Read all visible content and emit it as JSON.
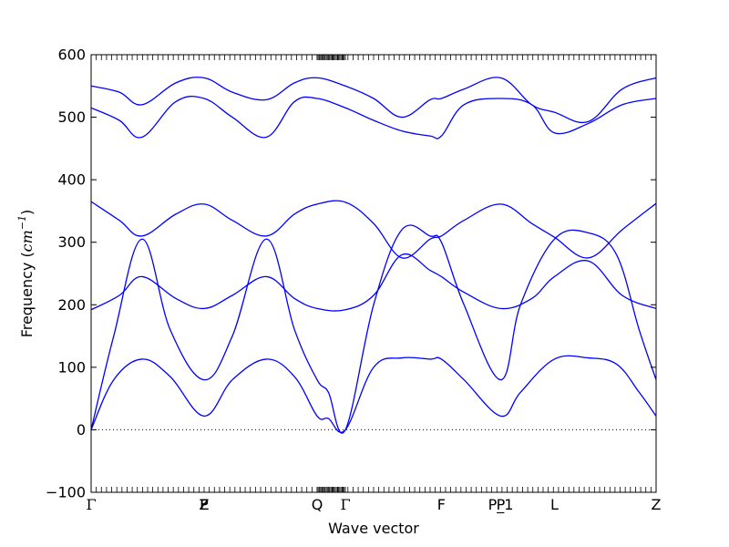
{
  "chart_data": {
    "type": "line",
    "title": "",
    "xlabel": "Wave vector",
    "ylabel": {
      "prefix": "Frequency (",
      "unit": "cm",
      "exponent": "−1",
      "suffix": ")"
    },
    "ylim": [
      -100,
      600
    ],
    "yticks": [
      "−100",
      "0",
      "100",
      "200",
      "300",
      "400",
      "500",
      "600"
    ],
    "ytick_values": [
      -100,
      0,
      100,
      200,
      300,
      400,
      500,
      600
    ],
    "xlim": [
      0,
      10
    ],
    "high_symmetry_points": [
      {
        "label": "Γ",
        "x": 0
      },
      {
        "label": "F",
        "x": 2
      },
      {
        "label": "P",
        "x": 2
      },
      {
        "label": "Z",
        "x": 2
      },
      {
        "label": "Q",
        "x": 4
      },
      {
        "label": "Γ",
        "x": 4.5
      },
      {
        "label": "F",
        "x": 6.2
      },
      {
        "label": "P",
        "x": 7.25
      },
      {
        "label": "P_1",
        "x": 7.25
      },
      {
        "label": "L",
        "x": 8.2
      },
      {
        "label": "Z",
        "x": 10
      }
    ],
    "zero_line": true,
    "grid": false,
    "line_color": "#0000ff",
    "series": [
      {
        "x": [
          0,
          0.4,
          0.9,
          1.4,
          2,
          2.5,
          3.1,
          3.6,
          4,
          4.2,
          4.5,
          5,
          5.5,
          6,
          6.2,
          6.6,
          7.25,
          7.6,
          8.2,
          8.8,
          9.3,
          9.7,
          10
        ],
        "values": [
          0,
          80,
          113,
          85,
          22,
          80,
          113,
          85,
          22,
          18,
          0,
          100,
          115,
          113,
          113,
          80,
          22,
          60,
          113,
          115,
          105,
          60,
          22
        ]
      },
      {
        "x": [
          0,
          0.4,
          0.9,
          1.4,
          2,
          2.5,
          3.1,
          3.6,
          4,
          4.2,
          4.5,
          5,
          5.5,
          6,
          6.2,
          6.6,
          7.25,
          7.6,
          8.2,
          8.8,
          9.3,
          9.7,
          10
        ],
        "values": [
          0,
          150,
          305,
          160,
          80,
          150,
          305,
          160,
          80,
          60,
          0,
          200,
          320,
          310,
          300,
          200,
          80,
          200,
          305,
          315,
          280,
          160,
          80
        ]
      },
      {
        "x": [
          0,
          0.5,
          0.9,
          1.5,
          2,
          2.5,
          3.1,
          3.6,
          4,
          4.5,
          5,
          5.5,
          6,
          6.2,
          6.6,
          7.25,
          7.8,
          8.2,
          8.8,
          9.4,
          10
        ],
        "values": [
          192,
          215,
          245,
          210,
          194,
          215,
          245,
          210,
          194,
          192,
          215,
          280,
          255,
          245,
          220,
          194,
          210,
          245,
          270,
          215,
          194
        ]
      },
      {
        "x": [
          0,
          0.5,
          0.9,
          1.5,
          2,
          2.5,
          3.1,
          3.6,
          4,
          4.5,
          5,
          5.5,
          6,
          6.2,
          6.6,
          7.25,
          7.8,
          8.2,
          8.8,
          9.4,
          10
        ],
        "values": [
          365,
          335,
          310,
          345,
          361,
          335,
          310,
          345,
          361,
          364,
          330,
          275,
          305,
          310,
          335,
          361,
          330,
          308,
          275,
          320,
          362
        ]
      },
      {
        "x": [
          0,
          0.5,
          0.9,
          1.5,
          2,
          2.5,
          3.1,
          3.6,
          4,
          4.5,
          5,
          5.5,
          6,
          6.2,
          6.6,
          7.25,
          7.8,
          8.2,
          8.8,
          9.4,
          10
        ],
        "values": [
          515,
          495,
          468,
          525,
          530,
          500,
          468,
          525,
          530,
          515,
          495,
          478,
          470,
          470,
          520,
          530,
          520,
          475,
          490,
          520,
          530
        ]
      },
      {
        "x": [
          0,
          0.5,
          0.9,
          1.5,
          2,
          2.5,
          3.1,
          3.6,
          4,
          4.5,
          5,
          5.5,
          6,
          6.2,
          6.6,
          7.25,
          7.8,
          8.2,
          8.8,
          9.4,
          10
        ],
        "values": [
          550,
          540,
          520,
          555,
          563,
          540,
          528,
          555,
          563,
          550,
          530,
          500,
          528,
          530,
          545,
          563,
          520,
          508,
          493,
          545,
          563
        ]
      }
    ]
  }
}
